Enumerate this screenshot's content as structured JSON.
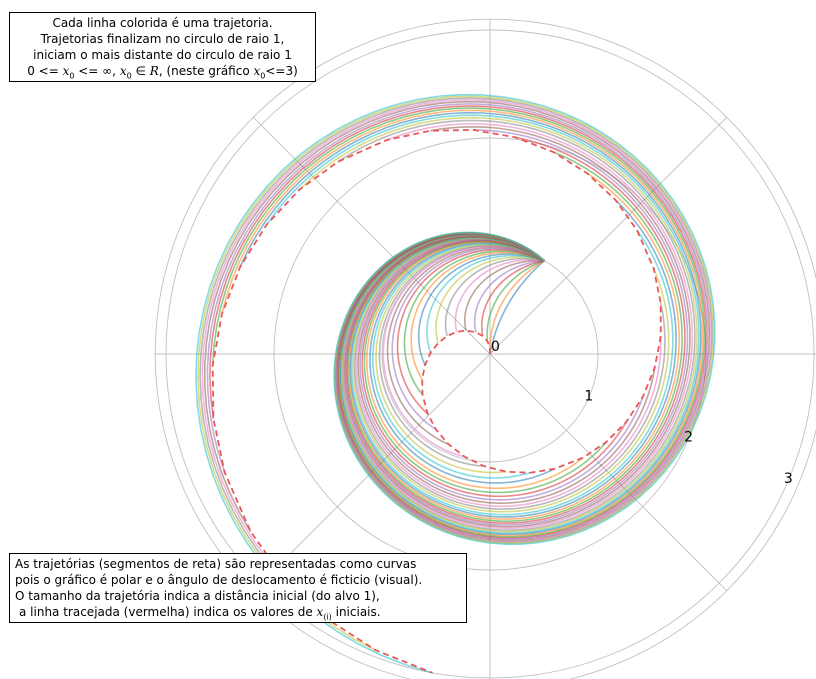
{
  "annotations": {
    "top": {
      "line1": "Cada linha colorida é uma trajetoria.",
      "line2": "Trajetorias finalizam no circulo de raio 1,",
      "line3": "iniciam o mais distante do circulo de raio 1",
      "line4_a": "0 <= ",
      "line4_x": "x",
      "line4_sub": "0",
      "line4_b": " <= ∞, ",
      "line4_c": " ∈ ",
      "line4_R": "R",
      "line4_d": ", (neste gráfico ",
      "line4_e": "<=3)"
    },
    "bottom": {
      "line1": "As trajetórias (segmentos de reta) são representadas como curvas",
      "line2": "pois o gráfico é polar e o ângulo de deslocamento é ficticio (visual).",
      "line3": "O tamanho da trajetória indica a distância inicial (do alvo 1),",
      "line4_a": "a linha tracejada (vermelha) indica os valores de ",
      "line4_x": "x",
      "line4_sub": "(i)",
      "line4_b": " iniciais."
    }
  },
  "chart_data": {
    "type": "line",
    "projection": "polar",
    "r_ticks": [
      "0",
      "1",
      "2",
      "3"
    ],
    "r_tick_values": [
      0,
      1,
      2,
      3
    ],
    "r_max": 3.1,
    "grid": true,
    "radial_gridlines_deg": [
      0,
      45,
      90,
      135,
      180,
      225,
      270,
      315
    ],
    "series": [
      {
        "points": [
          {
            "theta_deg": 4.27,
            "r": 0.0
          },
          {
            "theta_deg": 59.77,
            "r": 1.0
          }
        ]
      },
      {
        "points": [
          {
            "theta_deg": 4.27,
            "r": 0.06
          },
          {
            "theta_deg": 59.77,
            "r": 1.0
          }
        ]
      },
      {
        "points": [
          {
            "theta_deg": 4.27,
            "r": 0.12
          },
          {
            "theta_deg": 59.77,
            "r": 1.0
          }
        ]
      },
      {
        "points": [
          {
            "theta_deg": 4.27,
            "r": 0.18
          },
          {
            "theta_deg": 59.77,
            "r": 1.0
          }
        ]
      },
      {
        "points": [
          {
            "theta_deg": 4.27,
            "r": 0.24
          },
          {
            "theta_deg": 59.77,
            "r": 1.0
          }
        ]
      },
      {
        "points": [
          {
            "theta_deg": 4.27,
            "r": 0.31
          },
          {
            "theta_deg": 59.77,
            "r": 1.0
          }
        ]
      },
      {
        "points": [
          {
            "theta_deg": 4.27,
            "r": 0.37
          },
          {
            "theta_deg": 59.77,
            "r": 1.0
          }
        ]
      },
      {
        "points": [
          {
            "theta_deg": 4.27,
            "r": 0.43
          },
          {
            "theta_deg": 59.77,
            "r": 1.0
          }
        ]
      },
      {
        "points": [
          {
            "theta_deg": 4.27,
            "r": 0.49
          },
          {
            "theta_deg": 59.77,
            "r": 1.0
          }
        ]
      },
      {
        "points": [
          {
            "theta_deg": 4.27,
            "r": 0.55
          },
          {
            "theta_deg": 59.77,
            "r": 1.0
          }
        ]
      },
      {
        "points": [
          {
            "theta_deg": 4.27,
            "r": 0.61
          },
          {
            "theta_deg": 59.77,
            "r": 1.0
          }
        ]
      },
      {
        "points": [
          {
            "theta_deg": 4.27,
            "r": 0.67
          },
          {
            "theta_deg": 59.77,
            "r": 1.0
          }
        ]
      },
      {
        "points": [
          {
            "theta_deg": 4.27,
            "r": 0.73
          },
          {
            "theta_deg": 59.77,
            "r": 1.0
          }
        ]
      },
      {
        "points": [
          {
            "theta_deg": 4.27,
            "r": 0.8
          },
          {
            "theta_deg": 59.77,
            "r": 1.0
          }
        ]
      },
      {
        "points": [
          {
            "theta_deg": 4.27,
            "r": 0.86
          },
          {
            "theta_deg": 59.77,
            "r": 1.0
          }
        ]
      },
      {
        "points": [
          {
            "theta_deg": 4.27,
            "r": 0.92
          },
          {
            "theta_deg": 59.77,
            "r": 1.0
          }
        ]
      },
      {
        "points": [
          {
            "theta_deg": 4.27,
            "r": 0.98
          },
          {
            "theta_deg": 59.77,
            "r": 1.0
          }
        ]
      },
      {
        "points": [
          {
            "theta_deg": 4.27,
            "r": 1.04
          },
          {
            "theta_deg": 59.77,
            "r": 1.0
          }
        ]
      },
      {
        "points": [
          {
            "theta_deg": 4.27,
            "r": 1.1
          },
          {
            "theta_deg": 59.77,
            "r": 1.0
          }
        ]
      },
      {
        "points": [
          {
            "theta_deg": 4.27,
            "r": 1.16
          },
          {
            "theta_deg": 59.77,
            "r": 1.0
          }
        ]
      },
      {
        "points": [
          {
            "theta_deg": 4.27,
            "r": 1.22
          },
          {
            "theta_deg": 59.77,
            "r": 1.0
          }
        ]
      },
      {
        "points": [
          {
            "theta_deg": 4.27,
            "r": 1.29
          },
          {
            "theta_deg": 59.77,
            "r": 1.0
          }
        ]
      },
      {
        "points": [
          {
            "theta_deg": 4.27,
            "r": 1.35
          },
          {
            "theta_deg": 59.77,
            "r": 1.0
          }
        ]
      },
      {
        "points": [
          {
            "theta_deg": 4.27,
            "r": 1.41
          },
          {
            "theta_deg": 59.77,
            "r": 1.0
          }
        ]
      },
      {
        "points": [
          {
            "theta_deg": 4.27,
            "r": 1.47
          },
          {
            "theta_deg": 59.77,
            "r": 1.0
          }
        ]
      },
      {
        "points": [
          {
            "theta_deg": 4.27,
            "r": 1.53
          },
          {
            "theta_deg": 59.77,
            "r": 1.0
          }
        ]
      },
      {
        "points": [
          {
            "theta_deg": 4.27,
            "r": 1.59
          },
          {
            "theta_deg": 59.77,
            "r": 1.0
          }
        ]
      },
      {
        "points": [
          {
            "theta_deg": 4.27,
            "r": 1.65
          },
          {
            "theta_deg": 59.77,
            "r": 1.0
          }
        ]
      },
      {
        "points": [
          {
            "theta_deg": 4.27,
            "r": 1.71
          },
          {
            "theta_deg": 59.77,
            "r": 1.0
          }
        ]
      },
      {
        "points": [
          {
            "theta_deg": 4.27,
            "r": 1.78
          },
          {
            "theta_deg": 59.77,
            "r": 1.0
          }
        ]
      },
      {
        "points": [
          {
            "theta_deg": 4.27,
            "r": 1.84
          },
          {
            "theta_deg": 59.77,
            "r": 1.0
          }
        ]
      },
      {
        "points": [
          {
            "theta_deg": 4.27,
            "r": 1.9
          },
          {
            "theta_deg": 59.77,
            "r": 1.0
          }
        ]
      },
      {
        "points": [
          {
            "theta_deg": 4.27,
            "r": 1.96
          },
          {
            "theta_deg": 59.77,
            "r": 1.0
          }
        ]
      },
      {
        "points": [
          {
            "theta_deg": 4.27,
            "r": 2.02
          },
          {
            "theta_deg": 59.77,
            "r": 1.0
          }
        ]
      },
      {
        "points": [
          {
            "theta_deg": 4.27,
            "r": 2.08
          },
          {
            "theta_deg": 59.77,
            "r": 1.0
          }
        ]
      },
      {
        "points": [
          {
            "theta_deg": 4.27,
            "r": 2.14
          },
          {
            "theta_deg": 59.77,
            "r": 1.0
          }
        ]
      },
      {
        "points": [
          {
            "theta_deg": 4.27,
            "r": 2.2
          },
          {
            "theta_deg": 59.77,
            "r": 1.0
          }
        ]
      },
      {
        "points": [
          {
            "theta_deg": 4.27,
            "r": 2.27
          },
          {
            "theta_deg": 59.77,
            "r": 1.0
          }
        ]
      },
      {
        "points": [
          {
            "theta_deg": 4.27,
            "r": 2.33
          },
          {
            "theta_deg": 59.77,
            "r": 1.0
          }
        ]
      },
      {
        "points": [
          {
            "theta_deg": 4.27,
            "r": 2.39
          },
          {
            "theta_deg": 59.77,
            "r": 1.0
          }
        ]
      },
      {
        "points": [
          {
            "theta_deg": 4.27,
            "r": 2.45
          },
          {
            "theta_deg": 59.77,
            "r": 1.0
          }
        ]
      },
      {
        "points": [
          {
            "theta_deg": 4.27,
            "r": 2.51
          },
          {
            "theta_deg": 59.77,
            "r": 1.0
          }
        ]
      },
      {
        "points": [
          {
            "theta_deg": 4.27,
            "r": 2.57
          },
          {
            "theta_deg": 59.77,
            "r": 1.0
          }
        ]
      },
      {
        "points": [
          {
            "theta_deg": 4.27,
            "r": 2.63
          },
          {
            "theta_deg": 59.77,
            "r": 1.0
          }
        ]
      },
      {
        "points": [
          {
            "theta_deg": 4.27,
            "r": 2.69
          },
          {
            "theta_deg": 59.77,
            "r": 1.0
          }
        ]
      },
      {
        "points": [
          {
            "theta_deg": 4.27,
            "r": 2.76
          },
          {
            "theta_deg": 59.77,
            "r": 1.0
          }
        ]
      },
      {
        "points": [
          {
            "theta_deg": 4.27,
            "r": 2.82
          },
          {
            "theta_deg": 59.77,
            "r": 1.0
          }
        ]
      },
      {
        "points": [
          {
            "theta_deg": 4.27,
            "r": 2.88
          },
          {
            "theta_deg": 59.77,
            "r": 1.0
          }
        ]
      },
      {
        "points": [
          {
            "theta_deg": 4.27,
            "r": 2.94
          },
          {
            "theta_deg": 59.77,
            "r": 1.0
          }
        ]
      },
      {
        "points": [
          {
            "theta_deg": 4.27,
            "r": 3.0
          },
          {
            "theta_deg": 59.77,
            "r": 1.0
          }
        ]
      }
    ],
    "trajectory_model": "theta(t) = theta_start + t * (theta_end - theta_start), r(t) = r0 + t * (1 - r0), t in [0, 1]",
    "initial_values_curve": {
      "style": "dashed",
      "color": "#e8575a",
      "description_in_chart": "x(i) iniciais"
    },
    "series_colors": [
      "#1f77b4",
      "#ff7f0e",
      "#2ca02c",
      "#d62728",
      "#9467bd",
      "#8c564b",
      "#e377c2",
      "#7f7f7f",
      "#bcbd22",
      "#17becf"
    ],
    "gridline_color": "#c0c0c0"
  }
}
